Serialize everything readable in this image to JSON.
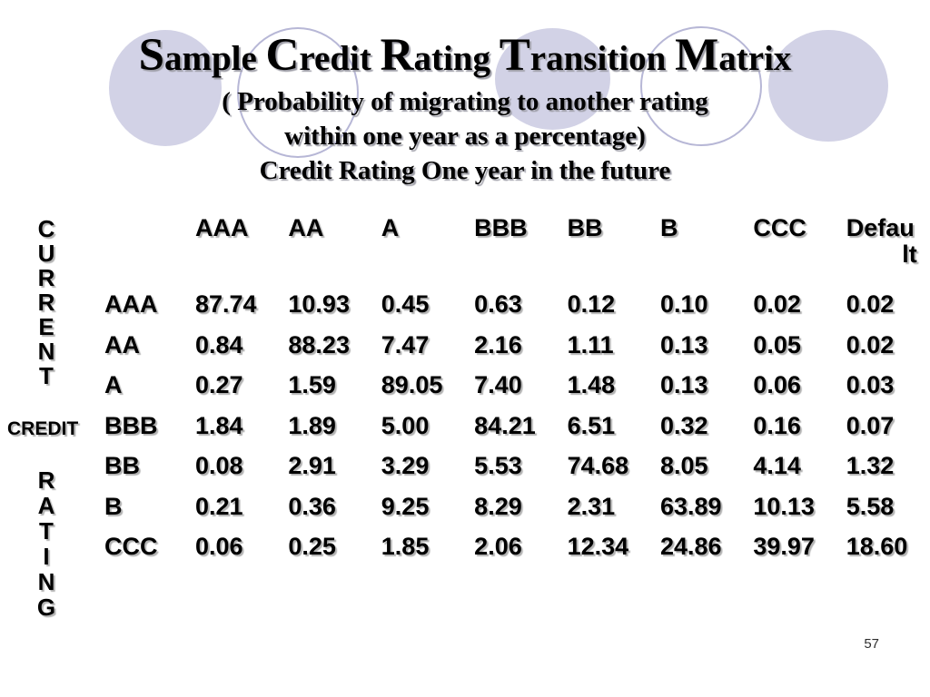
{
  "title": {
    "line1": "Sample Credit Rating Transition Matrix",
    "line2": "( Probability of migrating to another rating",
    "line3": "within one year as a percentage)",
    "line4": "Credit Rating One year in the future"
  },
  "axis_labels": {
    "current": "CURRENT",
    "credit": "CREDIT",
    "rating": "RATING"
  },
  "page_number": "57",
  "colors": {
    "circle_fill": "#d2d2e6",
    "circle_outline": "#b7b7d6",
    "text": "#000000",
    "text_shadow": "#b2b2b2",
    "background": "#ffffff"
  },
  "chart_data": {
    "type": "table",
    "title": "Sample Credit Rating Transition Matrix",
    "subtitle": "( Probability of migrating to another rating within one year as a percentage)",
    "column_axis_label": "Credit Rating One year in the future",
    "row_axis_label": "CURRENT CREDIT RATING",
    "columns": [
      "AAA",
      "AA",
      "A",
      "BBB",
      "BB",
      "B",
      "CCC",
      "Default"
    ],
    "column_display_lines": [
      [
        "AAA"
      ],
      [
        "AA"
      ],
      [
        "A"
      ],
      [
        "BBB"
      ],
      [
        "BB"
      ],
      [
        "B"
      ],
      [
        "CCC"
      ],
      [
        "Defau",
        "lt"
      ]
    ],
    "rows": [
      {
        "label": "AAA",
        "values": [
          "87.74",
          "10.93",
          "0.45",
          "0.63",
          "0.12",
          "0.10",
          "0.02",
          "0.02"
        ]
      },
      {
        "label": "AA",
        "values": [
          "0.84",
          "88.23",
          "7.47",
          "2.16",
          "1.11",
          "0.13",
          "0.05",
          "0.02"
        ]
      },
      {
        "label": "A",
        "values": [
          "0.27",
          "1.59",
          "89.05",
          "7.40",
          "1.48",
          "0.13",
          "0.06",
          "0.03"
        ]
      },
      {
        "label": "BBB",
        "values": [
          "1.84",
          "1.89",
          "5.00",
          "84.21",
          "6.51",
          "0.32",
          "0.16",
          "0.07"
        ]
      },
      {
        "label": "BB",
        "values": [
          "0.08",
          "2.91",
          "3.29",
          "5.53",
          "74.68",
          "8.05",
          "4.14",
          "1.32"
        ]
      },
      {
        "label": "B",
        "values": [
          "0.21",
          "0.36",
          "9.25",
          "8.29",
          "2.31",
          "63.89",
          "10.13",
          "5.58"
        ]
      },
      {
        "label": "CCC",
        "values": [
          "0.06",
          "0.25",
          "1.85",
          "2.06",
          "12.34",
          "24.86",
          "39.97",
          "18.60"
        ]
      }
    ]
  }
}
